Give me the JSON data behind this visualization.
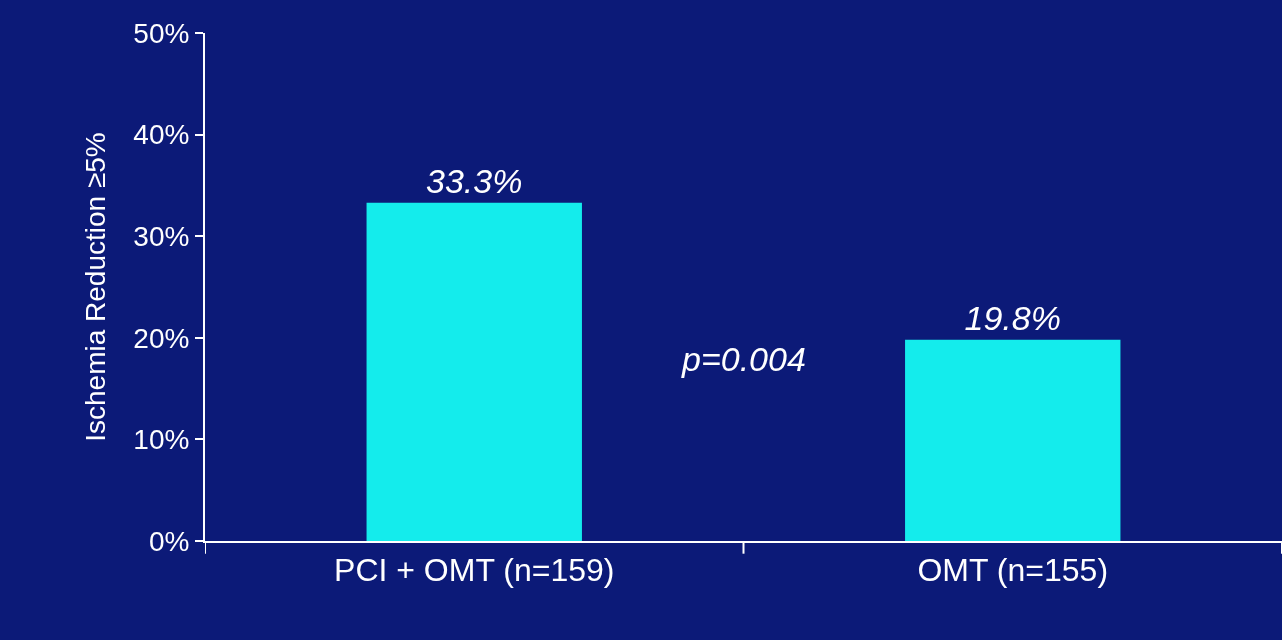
{
  "chart_data": {
    "type": "bar",
    "ylabel": "Ischemia Reduction ≥5%",
    "categories": [
      "PCI + OMT (n=159)",
      "OMT (n=155)"
    ],
    "values": [
      33.3,
      19.8
    ],
    "color": "#14ecec",
    "value_labels": [
      "33.3%",
      "19.8%"
    ],
    "ylim": [
      0,
      50
    ],
    "yticks": [
      {
        "value": 0,
        "label": "0%"
      },
      {
        "value": 10,
        "label": "10%"
      },
      {
        "value": 20,
        "label": "20%"
      },
      {
        "value": 30,
        "label": "30%"
      },
      {
        "value": 40,
        "label": "40%"
      },
      {
        "value": 50,
        "label": "50%"
      }
    ],
    "annotations": [
      "p=0.004"
    ],
    "grid": false,
    "legend": false
  }
}
